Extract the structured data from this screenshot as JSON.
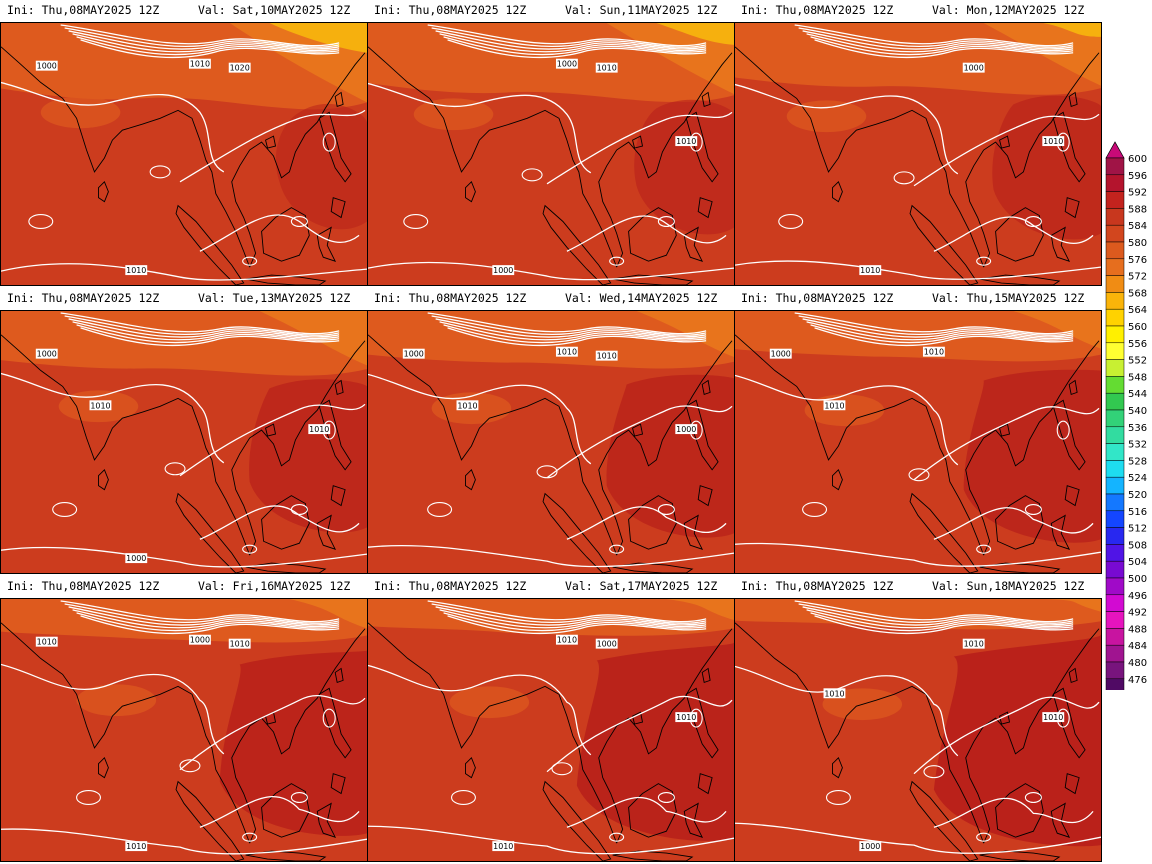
{
  "panels": [
    {
      "ini": "Ini: Thu,08MAY2025 12Z",
      "val": "Val: Sat,10MAY2025 12Z",
      "contour_labels": [
        "1000",
        "1010",
        "1020",
        "1010"
      ],
      "variant": 0
    },
    {
      "ini": "Ini: Thu,08MAY2025 12Z",
      "val": "Val: Sun,11MAY2025 12Z",
      "contour_labels": [
        "1000",
        "1010",
        "1000",
        "1010"
      ],
      "variant": 1
    },
    {
      "ini": "Ini: Thu,08MAY2025 12Z",
      "val": "Val: Mon,12MAY2025 12Z",
      "contour_labels": [
        "1000",
        "1010",
        "1010"
      ],
      "variant": 2
    },
    {
      "ini": "Ini: Thu,08MAY2025 12Z",
      "val": "Val: Tue,13MAY2025 12Z",
      "contour_labels": [
        "1000",
        "1010",
        "1010",
        "1000"
      ],
      "variant": 3
    },
    {
      "ini": "Ini: Thu,08MAY2025 12Z",
      "val": "Val: Wed,14MAY2025 12Z",
      "contour_labels": [
        "1000",
        "1010",
        "1000",
        "1010",
        "1010"
      ],
      "variant": 4
    },
    {
      "ini": "Ini: Thu,08MAY2025 12Z",
      "val": "Val: Thu,15MAY2025 12Z",
      "contour_labels": [
        "1010",
        "1000",
        "1010"
      ],
      "variant": 5
    },
    {
      "ini": "Ini: Thu,08MAY2025 12Z",
      "val": "Val: Fri,16MAY2025 12Z",
      "contour_labels": [
        "1010",
        "1000",
        "1010",
        "1010"
      ],
      "variant": 6
    },
    {
      "ini": "Ini: Thu,08MAY2025 12Z",
      "val": "Val: Sat,17MAY2025 12Z",
      "contour_labels": [
        "1010",
        "1000",
        "1010",
        "1010"
      ],
      "variant": 7
    },
    {
      "ini": "Ini: Thu,08MAY2025 12Z",
      "val": "Val: Sun,18MAY2025 12Z",
      "contour_labels": [
        "1010",
        "1000",
        "1010",
        "1010"
      ],
      "variant": 8
    }
  ],
  "colorbar": {
    "levels": [
      "600",
      "596",
      "592",
      "588",
      "584",
      "580",
      "576",
      "572",
      "568",
      "564",
      "560",
      "556",
      "552",
      "548",
      "544",
      "540",
      "536",
      "532",
      "528",
      "524",
      "520",
      "516",
      "512",
      "508",
      "504",
      "500",
      "496",
      "492",
      "488",
      "484",
      "480",
      "476"
    ],
    "colors": [
      "#a01446",
      "#b4142d",
      "#c3231e",
      "#c8371e",
      "#d2461e",
      "#dc5a1e",
      "#e66e1e",
      "#f08c14",
      "#fab40a",
      "#ffd200",
      "#fff000",
      "#ffff32",
      "#c8f032",
      "#64dc32",
      "#32c850",
      "#32d278",
      "#32dca0",
      "#32e6c8",
      "#1edcf0",
      "#14b4ff",
      "#1478ff",
      "#1446ff",
      "#2828f0",
      "#5014e6",
      "#780ad2",
      "#a00ac8",
      "#d20ad2",
      "#e614be",
      "#c814a0",
      "#a01490",
      "#78147d",
      "#500a64"
    ],
    "cap_top_color": "#c80a78",
    "cap_bottom_color": "#3c0a46"
  }
}
